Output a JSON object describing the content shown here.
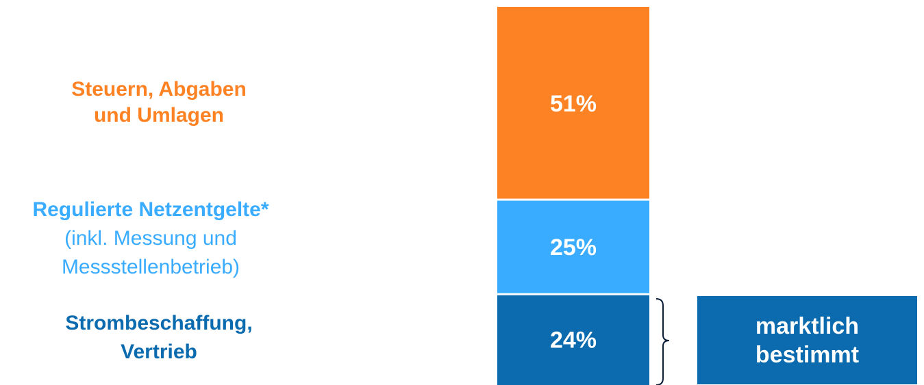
{
  "labels": {
    "taxes": [
      "Steuern, Abgaben",
      "und Umlagen"
    ],
    "network_title": "Regulierte Netzentgelte*",
    "network_sub": [
      "(inkl. Messung und",
      "Messstellenbetrieb)"
    ],
    "procurement": [
      "Strombeschaffung,",
      "Vertrieb"
    ]
  },
  "market_box": [
    "marktlich",
    "bestimmt"
  ],
  "chart_data": {
    "type": "bar",
    "stacked": true,
    "categories": [
      ""
    ],
    "series": [
      {
        "name": "Steuern, Abgaben und Umlagen",
        "values": [
          51
        ],
        "label": "51%",
        "color": "#fd8224"
      },
      {
        "name": "Regulierte Netzentgelte*",
        "values": [
          25
        ],
        "label": "25%",
        "color": "#3aacff"
      },
      {
        "name": "Strombeschaffung, Vertrieb",
        "values": [
          24
        ],
        "label": "24%",
        "color": "#0b6bae"
      }
    ],
    "ylim": [
      0,
      100
    ],
    "grid": false,
    "legend": "none"
  }
}
